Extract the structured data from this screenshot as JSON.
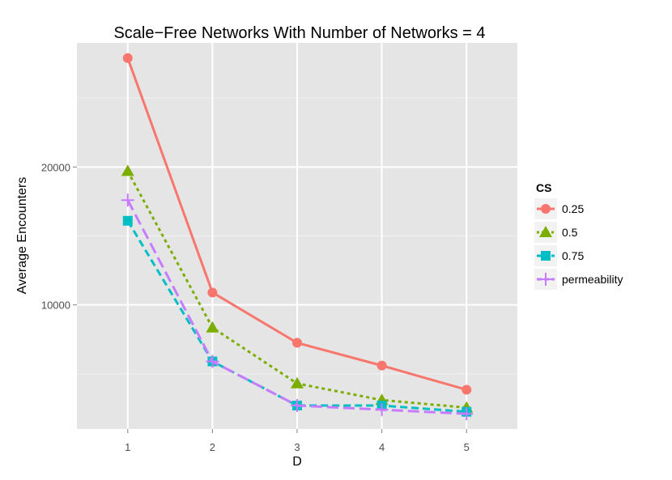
{
  "chart_data": {
    "type": "line",
    "title": "Scale−Free Networks With Number of Networks = 4",
    "xlabel": "D",
    "ylabel": "Average Encounters",
    "x": [
      1,
      2,
      3,
      4,
      5
    ],
    "x_ticks": [
      "1",
      "2",
      "3",
      "4",
      "5"
    ],
    "xlim": [
      0.4,
      5.6
    ],
    "ylim": [
      1000,
      29000
    ],
    "y_ticks": [
      10000,
      20000
    ],
    "y_tick_labels": [
      "10000",
      "20000"
    ],
    "y_minor_ticks": [
      5000,
      15000,
      25000
    ],
    "grid": true,
    "legend": {
      "title": "CS",
      "position": "right"
    },
    "series": [
      {
        "name": "0.25",
        "values": [
          27900,
          10900,
          7250,
          5600,
          3850
        ],
        "color": "#F8766D",
        "dash": "solid",
        "marker": "circle"
      },
      {
        "name": "0.5",
        "values": [
          19700,
          8350,
          4300,
          3100,
          2550
        ],
        "color": "#7CAE00",
        "dash": "dotted",
        "marker": "triangle"
      },
      {
        "name": "0.75",
        "values": [
          16100,
          5900,
          2700,
          2700,
          2250
        ],
        "color": "#00BFC4",
        "dash": "dashed",
        "marker": "square"
      },
      {
        "name": "permeability",
        "values": [
          17600,
          5900,
          2700,
          2400,
          2100
        ],
        "color": "#C77CFF",
        "dash": "longdash",
        "marker": "cross"
      }
    ]
  }
}
